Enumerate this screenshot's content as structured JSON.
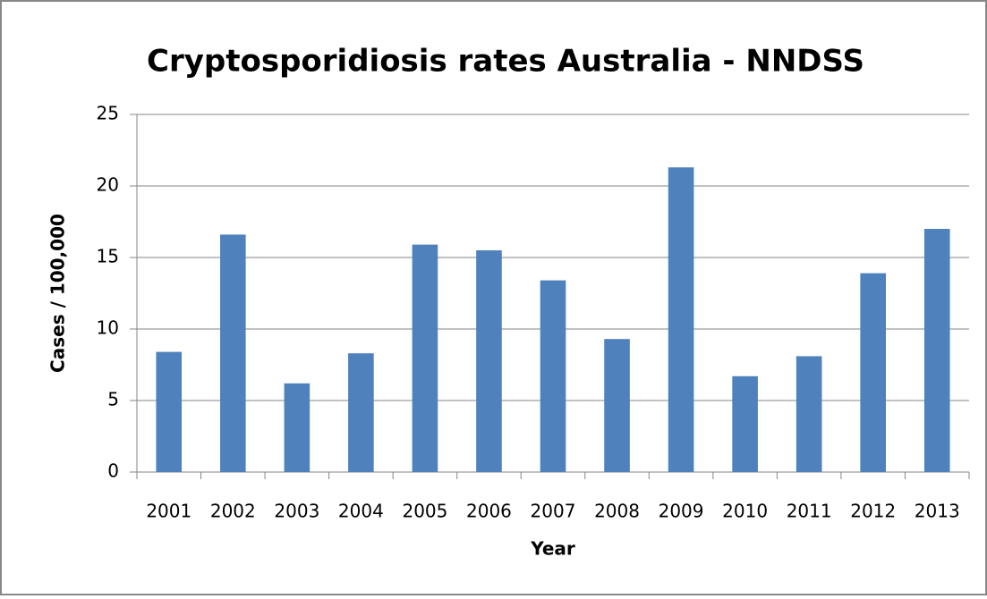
{
  "chart_data": {
    "type": "bar",
    "title": "Cryptosporidiosis rates Australia - NNDSS",
    "x_label": "Year",
    "y_label": "Cases / 100,000",
    "categories": [
      "2001",
      "2002",
      "2003",
      "2004",
      "2005",
      "2006",
      "2007",
      "2008",
      "2009",
      "2010",
      "2011",
      "2012",
      "2013"
    ],
    "values": [
      8.4,
      16.6,
      6.2,
      8.3,
      15.9,
      15.5,
      13.4,
      9.3,
      21.3,
      6.7,
      8.1,
      13.9,
      17.0
    ],
    "color": "#4f81bd",
    "ylim": [
      0,
      25
    ],
    "yticks": [
      0,
      5,
      10,
      15,
      20,
      25
    ],
    "grid": true
  }
}
